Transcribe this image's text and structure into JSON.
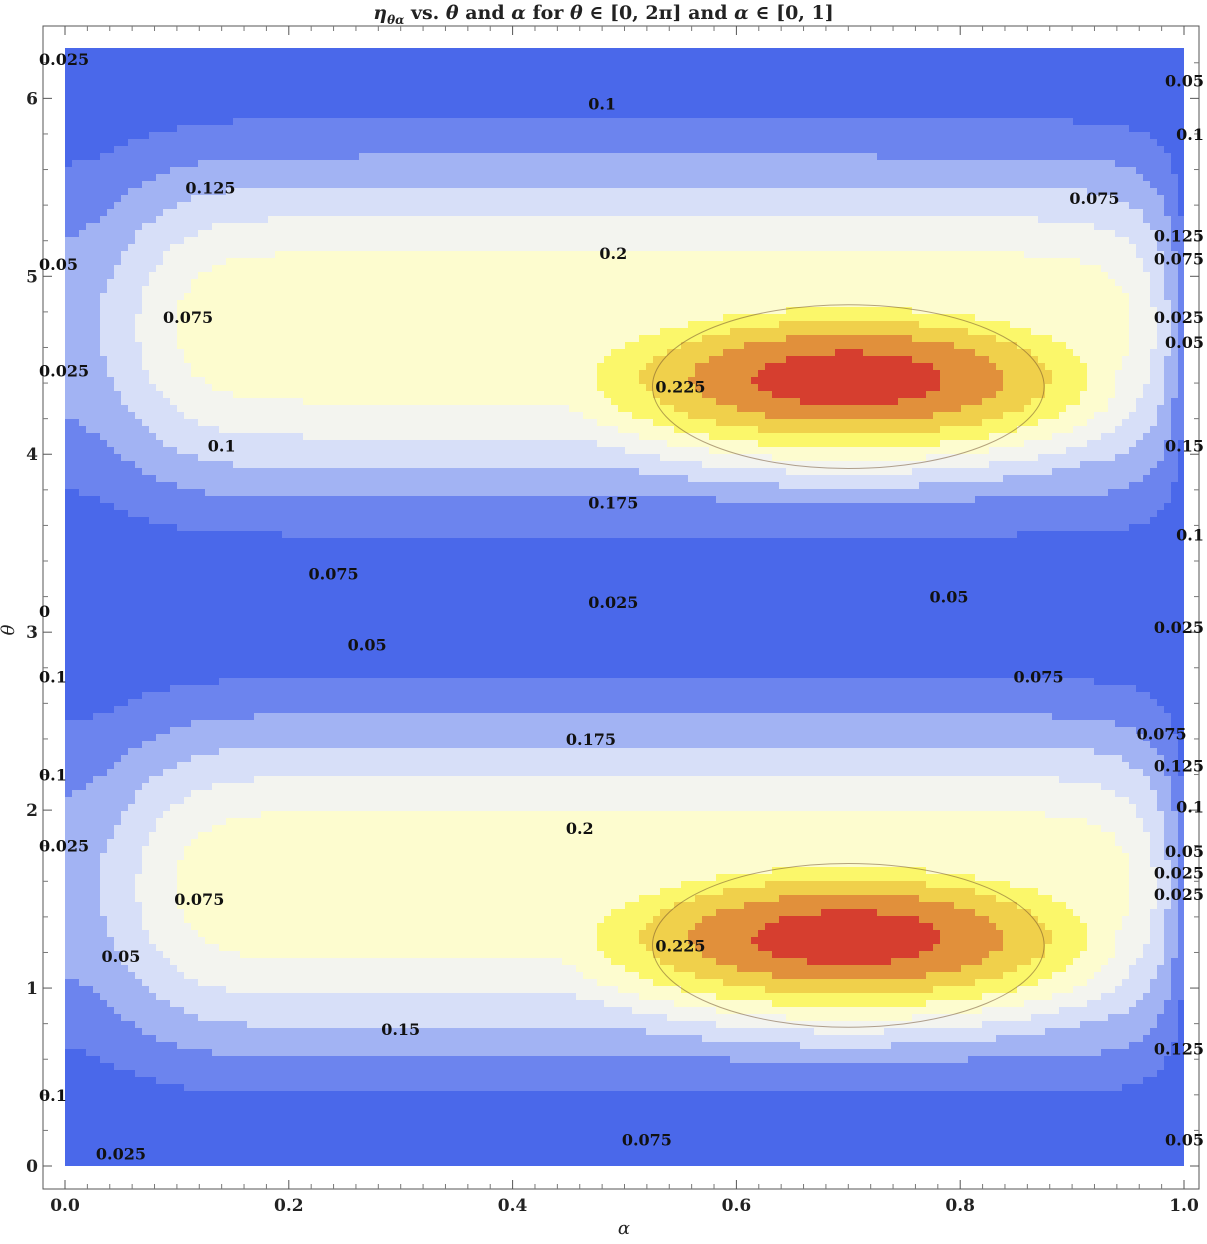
{
  "chart_data": {
    "type": "contour",
    "title": {
      "eta": "η",
      "eta_sub": "θα",
      "mid1": " vs. ",
      "theta": "θ",
      "mid2": "  and ",
      "alpha": "α",
      "mid3": " for ",
      "theta2": "θ",
      "range1": " ∈ [0, 2π] and ",
      "alpha2": "α",
      "range2": " ∈ [0, 1]"
    },
    "xlabel": "α",
    "ylabel": "θ",
    "xlim": [
      0,
      1
    ],
    "ylim": [
      0,
      6.283
    ],
    "x_ticks": [
      "0.0",
      "0.2",
      "0.4",
      "0.6",
      "0.8",
      "1.0"
    ],
    "y_ticks": [
      "0",
      "1",
      "2",
      "3",
      "4",
      "5",
      "6"
    ],
    "contour_levels": [
      0,
      0.025,
      0.05,
      0.075,
      0.1,
      0.125,
      0.15,
      0.175,
      0.2,
      0.225
    ],
    "colors": {
      "band_0": "#4a68ea",
      "band_0.025": "#6c84ee",
      "band_0.05": "#a2b3f3",
      "band_0.075": "#d7dff8",
      "band_0.1": "#f3f4ef",
      "band_0.125": "#fdfccf",
      "band_0.15": "#fbf76a",
      "band_0.175": "#f0d04b",
      "band_0.2": "#e1903b",
      "band_0.225": "#d63e2f"
    },
    "peaks": [
      {
        "alpha": 0.7,
        "theta": 1.24,
        "value": 0.225
      },
      {
        "alpha": 0.7,
        "theta": 4.38,
        "value": 0.225
      }
    ],
    "contour_labels": [
      {
        "text": "0.025",
        "alpha": 0.0,
        "theta": 6.22
      },
      {
        "text": "0.1",
        "alpha": 0.48,
        "theta": 5.97
      },
      {
        "text": "0.05",
        "alpha": 1.0,
        "theta": 6.1
      },
      {
        "text": "0.1",
        "alpha": 1.0,
        "theta": 5.8
      },
      {
        "text": "0.125",
        "alpha": 0.13,
        "theta": 5.5
      },
      {
        "text": "0.075",
        "alpha": 0.92,
        "theta": 5.44
      },
      {
        "text": "0.125",
        "alpha": 1.0,
        "theta": 5.23
      },
      {
        "text": "0.2",
        "alpha": 0.49,
        "theta": 5.13
      },
      {
        "text": "0.075",
        "alpha": 1.0,
        "theta": 5.1
      },
      {
        "text": "0.05",
        "alpha": 0.0,
        "theta": 5.07
      },
      {
        "text": "0.075",
        "alpha": 0.11,
        "theta": 4.77
      },
      {
        "text": "0.025",
        "alpha": 1.0,
        "theta": 4.77
      },
      {
        "text": "0.05",
        "alpha": 1.0,
        "theta": 4.63
      },
      {
        "text": "0.225",
        "alpha": 0.55,
        "theta": 4.38
      },
      {
        "text": "0.025",
        "alpha": 0.0,
        "theta": 4.47
      },
      {
        "text": "0.1",
        "alpha": 0.14,
        "theta": 4.05
      },
      {
        "text": "0.15",
        "alpha": 1.0,
        "theta": 4.05
      },
      {
        "text": "0.175",
        "alpha": 0.49,
        "theta": 3.73
      },
      {
        "text": "0.1",
        "alpha": 1.0,
        "theta": 3.55
      },
      {
        "text": "0.075",
        "alpha": 0.24,
        "theta": 3.33
      },
      {
        "text": "0.05",
        "alpha": 0.79,
        "theta": 3.2
      },
      {
        "text": "0.025",
        "alpha": 0.49,
        "theta": 3.17
      },
      {
        "text": "0",
        "alpha": 0.0,
        "theta": 3.12
      },
      {
        "text": "0.05",
        "alpha": 0.27,
        "theta": 2.93
      },
      {
        "text": "0.025",
        "alpha": 1.0,
        "theta": 3.03
      },
      {
        "text": "0.075",
        "alpha": 0.87,
        "theta": 2.75
      },
      {
        "text": "0.1",
        "alpha": 0.0,
        "theta": 2.75
      },
      {
        "text": "0.175",
        "alpha": 0.47,
        "theta": 2.4
      },
      {
        "text": "0.075",
        "alpha": 0.98,
        "theta": 2.43
      },
      {
        "text": "0.1",
        "alpha": 0.0,
        "theta": 2.2
      },
      {
        "text": "0.125",
        "alpha": 1.0,
        "theta": 2.25
      },
      {
        "text": "0.1",
        "alpha": 1.0,
        "theta": 2.02
      },
      {
        "text": "0.2",
        "alpha": 0.46,
        "theta": 1.9
      },
      {
        "text": "0.025",
        "alpha": 0.0,
        "theta": 1.8
      },
      {
        "text": "0.05",
        "alpha": 1.0,
        "theta": 1.77
      },
      {
        "text": "0.025",
        "alpha": 1.0,
        "theta": 1.65
      },
      {
        "text": "0.025",
        "alpha": 1.0,
        "theta": 1.53
      },
      {
        "text": "0.075",
        "alpha": 0.12,
        "theta": 1.5
      },
      {
        "text": "0.225",
        "alpha": 0.55,
        "theta": 1.24
      },
      {
        "text": "0.05",
        "alpha": 0.05,
        "theta": 1.18
      },
      {
        "text": "0.15",
        "alpha": 0.3,
        "theta": 0.77
      },
      {
        "text": "0.125",
        "alpha": 1.0,
        "theta": 0.66
      },
      {
        "text": "0.1",
        "alpha": 0.0,
        "theta": 0.4
      },
      {
        "text": "0.075",
        "alpha": 0.52,
        "theta": 0.15
      },
      {
        "text": "0.05",
        "alpha": 1.0,
        "theta": 0.15
      },
      {
        "text": "0.025",
        "alpha": 0.05,
        "theta": 0.07
      }
    ]
  }
}
